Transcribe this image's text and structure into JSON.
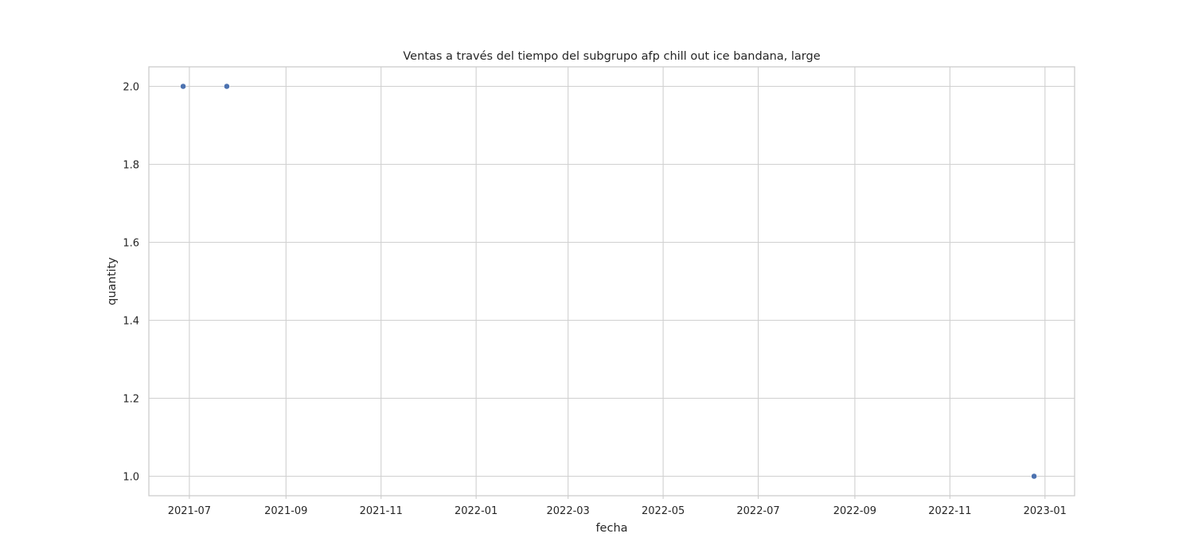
{
  "chart_data": {
    "type": "scatter",
    "title": "Ventas a través del tiempo del subgrupo afp chill out ice bandana, large",
    "xlabel": "fecha",
    "ylabel": "quantity",
    "x_type": "date",
    "xlim": [
      "2021-06-05",
      "2023-01-20"
    ],
    "ylim": [
      0.95,
      2.05
    ],
    "x_ticks": [
      "2021-07-01",
      "2021-09-01",
      "2021-11-01",
      "2022-01-01",
      "2022-03-01",
      "2022-05-01",
      "2022-07-01",
      "2022-09-01",
      "2022-11-01",
      "2023-01-01"
    ],
    "x_tick_labels": [
      "2021-07",
      "2021-09",
      "2021-11",
      "2022-01",
      "2022-03",
      "2022-05",
      "2022-07",
      "2022-09",
      "2022-11",
      "2023-01"
    ],
    "y_ticks": [
      1.0,
      1.2,
      1.4,
      1.6,
      1.8,
      2.0
    ],
    "y_tick_labels": [
      "1.0",
      "1.2",
      "1.4",
      "1.6",
      "1.8",
      "2.0"
    ],
    "grid": true,
    "legend": "none",
    "colors": {
      "points": "#4c72b0",
      "grid": "#d0d0d0",
      "frame": "#cccccc"
    },
    "points": [
      {
        "x": "2021-06-27",
        "y": 2
      },
      {
        "x": "2021-07-25",
        "y": 2
      },
      {
        "x": "2022-12-25",
        "y": 1
      }
    ]
  }
}
